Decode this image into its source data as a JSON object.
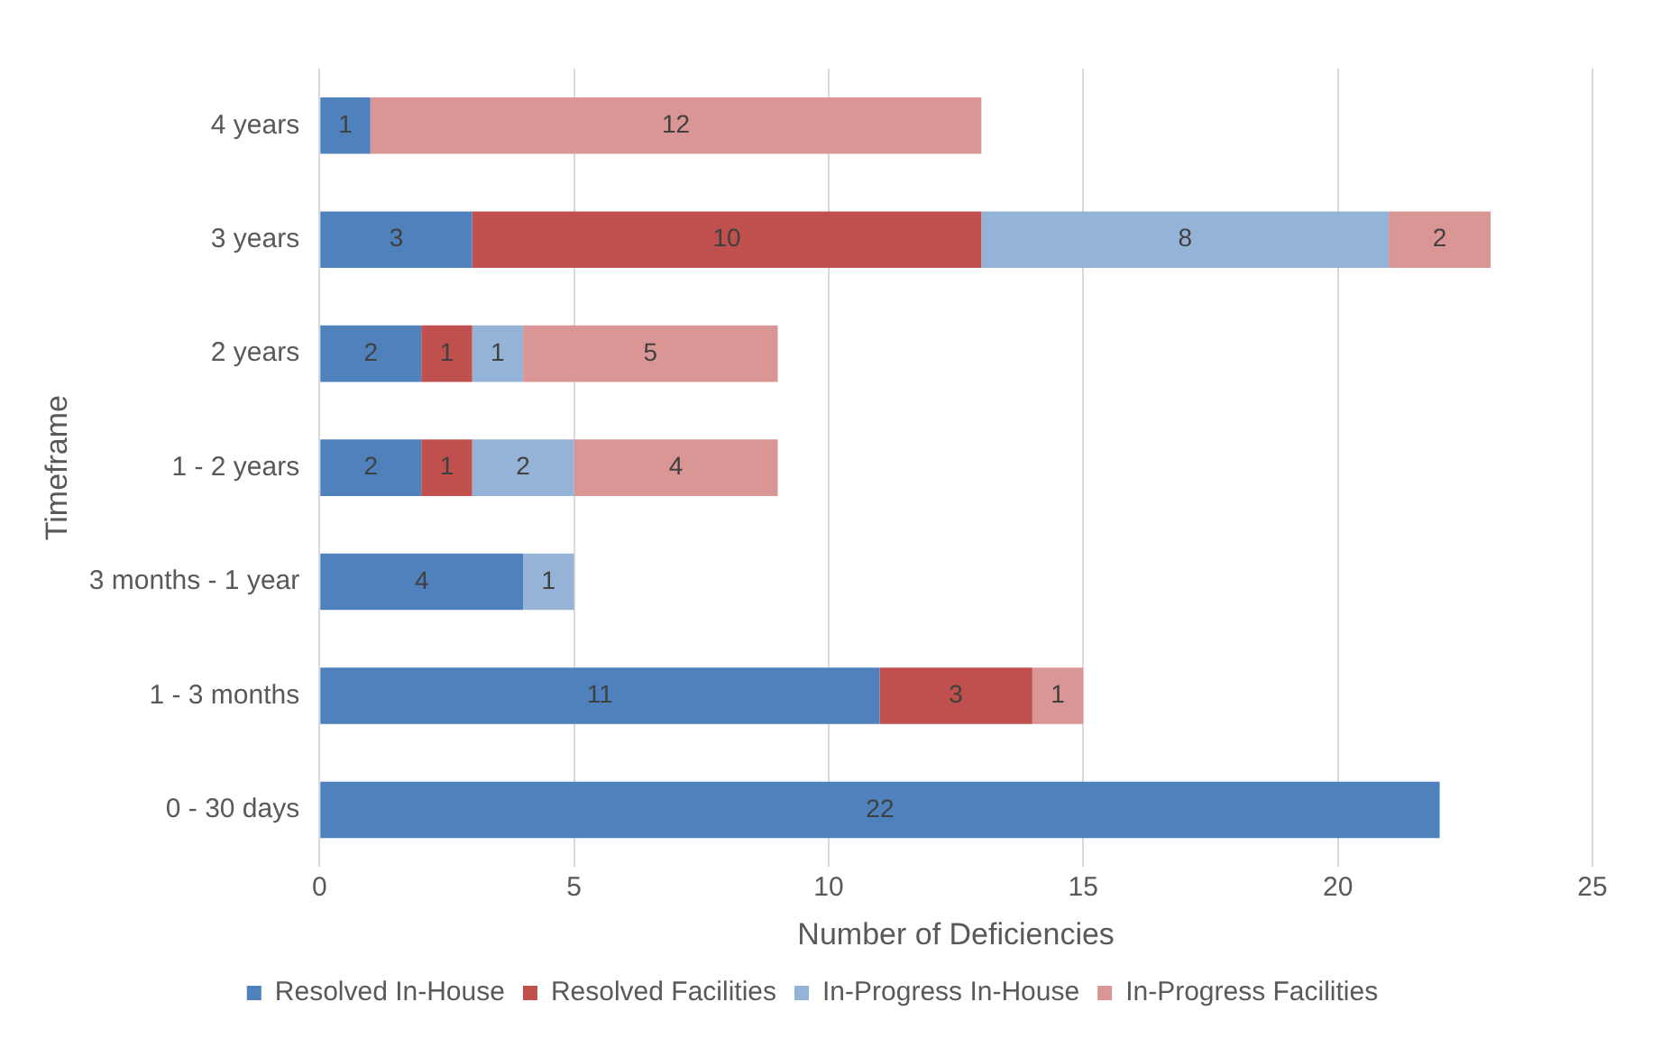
{
  "chart_data": {
    "type": "bar",
    "orientation": "horizontal",
    "stacked": true,
    "xlabel": "Number of Deficiencies",
    "ylabel": "Timeframe",
    "categories": [
      "4 years",
      "3 years",
      "2 years",
      "1 - 2 years",
      "3 months - 1 year",
      "1 - 3 months",
      "0 - 30 days"
    ],
    "series": [
      {
        "name": "Resolved In-House",
        "color": "#4f81bd",
        "values": [
          1,
          3,
          2,
          2,
          4,
          11,
          22
        ]
      },
      {
        "name": "Resolved Facilities",
        "color": "#c0504d",
        "values": [
          null,
          10,
          1,
          1,
          null,
          3,
          null
        ]
      },
      {
        "name": "In-Progress In-House",
        "color": "#95b3d7",
        "values": [
          null,
          8,
          1,
          2,
          1,
          null,
          null
        ]
      },
      {
        "name": "In-Progress Facilities",
        "color": "#d99694",
        "values": [
          12,
          2,
          5,
          4,
          null,
          1,
          null
        ]
      }
    ],
    "xlim": [
      0,
      25
    ],
    "xticks": [
      0,
      5,
      10,
      15,
      20,
      25
    ],
    "grid": "x",
    "legend": "bottom",
    "data_labels": true
  }
}
